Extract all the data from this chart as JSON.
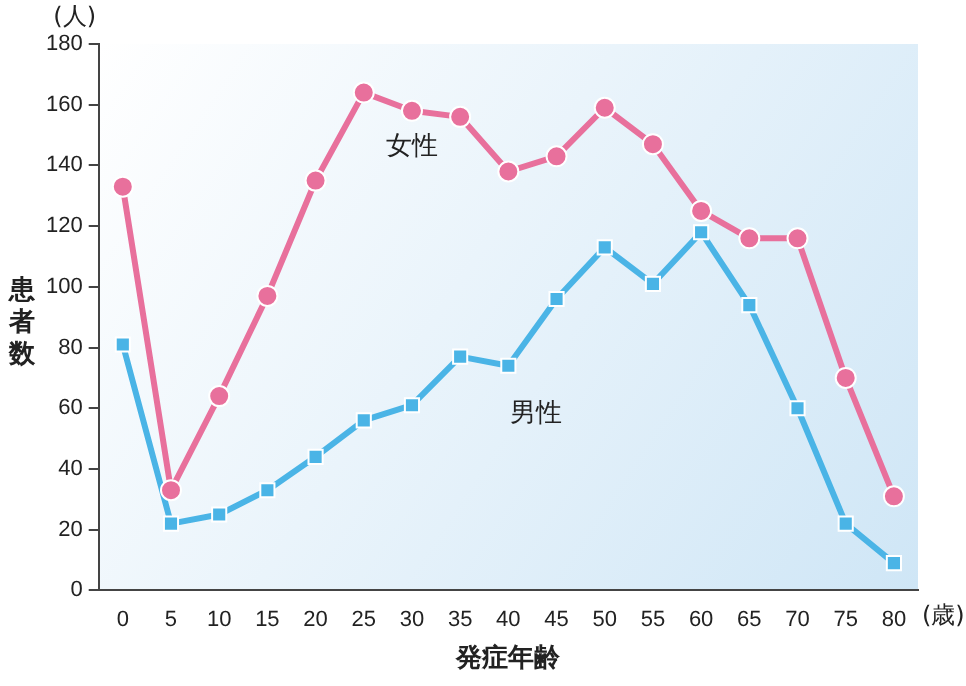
{
  "chart_data": {
    "type": "line",
    "xlabel": "発症年齢",
    "ylabel": "患者数",
    "categories": [
      "0",
      "5",
      "10",
      "15",
      "20",
      "25",
      "30",
      "35",
      "40",
      "45",
      "50",
      "55",
      "60",
      "65",
      "70",
      "75",
      "80"
    ],
    "ylim": [
      0,
      180
    ],
    "yticks": [
      0,
      20,
      40,
      60,
      80,
      100,
      120,
      140,
      160,
      180
    ],
    "grid": false,
    "legend": false,
    "series": [
      {
        "name": "女性",
        "color": "#e8709c",
        "marker": "circle",
        "values": [
          133,
          33,
          64,
          97,
          135,
          164,
          158,
          156,
          138,
          143,
          159,
          147,
          125,
          116,
          116,
          70,
          31
        ]
      },
      {
        "name": "男性",
        "color": "#4ab4e6",
        "marker": "square",
        "values": [
          81,
          22,
          25,
          33,
          44,
          56,
          61,
          77,
          74,
          96,
          113,
          101,
          118,
          94,
          60,
          22,
          9
        ]
      }
    ],
    "annotations": [
      "(人)",
      "(歳)"
    ]
  }
}
